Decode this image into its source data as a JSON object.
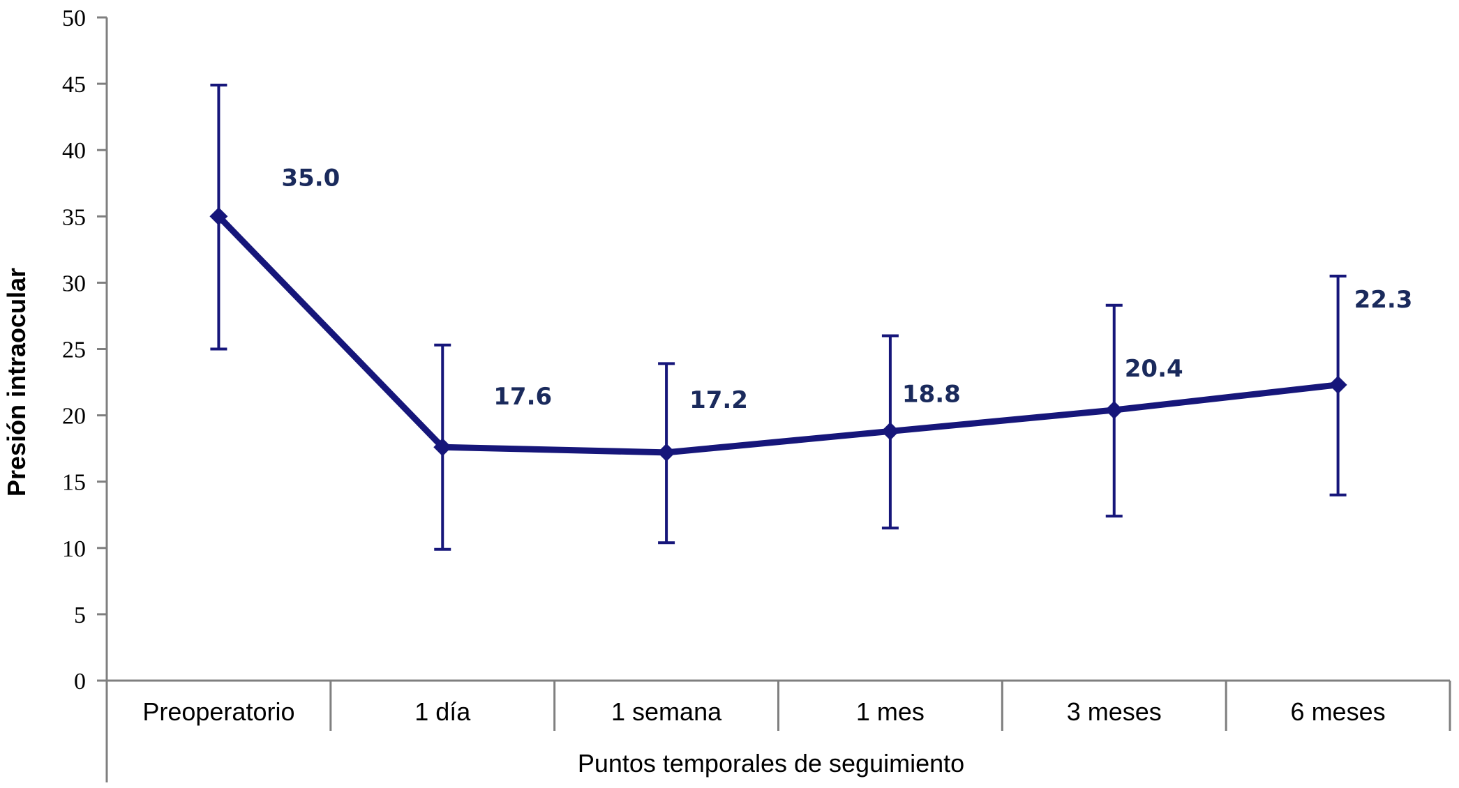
{
  "chart_data": {
    "type": "line",
    "title": "",
    "xlabel": "Puntos temporales de seguimiento",
    "ylabel": "Presión intraocular",
    "ylim": [
      0,
      50
    ],
    "yticks": [
      "0",
      "5",
      "10",
      "15",
      "20",
      "25",
      "30",
      "35",
      "40",
      "45",
      "50"
    ],
    "categories": [
      "Preoperatorio",
      "1 día",
      "1 semana",
      "1 mes",
      "3 meses",
      "6 meses"
    ],
    "series": [
      {
        "values": [
          35.0,
          17.6,
          17.2,
          18.8,
          20.4,
          22.3
        ],
        "error_low": [
          25.0,
          9.9,
          10.4,
          11.5,
          12.4,
          14.0
        ],
        "error_high": [
          44.9,
          25.3,
          23.9,
          26.0,
          28.3,
          30.5
        ],
        "labels": [
          "35.0",
          "17.6",
          "17.2",
          "18.8",
          "20.4",
          "22.3"
        ]
      }
    ],
    "grid": false,
    "legend": "none",
    "colors": {
      "series": "#16167a",
      "label": "#1a2a5c",
      "axis": "#7f7f7f"
    }
  }
}
